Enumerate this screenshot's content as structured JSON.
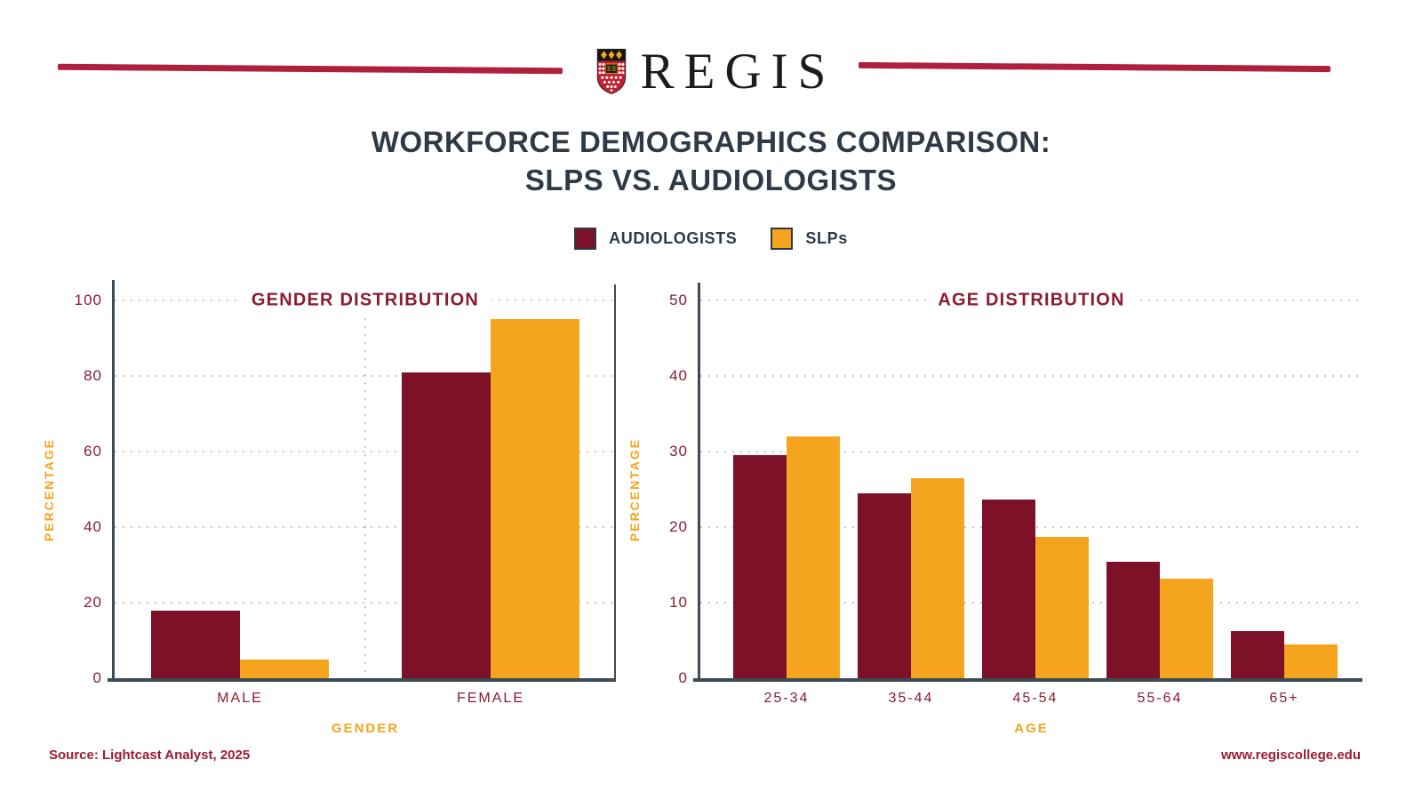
{
  "brand": {
    "wordmark": "REGIS"
  },
  "title": {
    "line1": "WORKFORCE DEMOGRAPHICS COMPARISON:",
    "line2": "SLPS VS. AUDIOLOGISTS"
  },
  "legend": [
    {
      "label": "AUDIOLOGISTS",
      "color": "#7D1128"
    },
    {
      "label": "SLPs",
      "color": "#F5A51D"
    }
  ],
  "colors": {
    "audiologists_bar": "#7D1128",
    "slps_bar": "#F5A51D",
    "maroon_text": "#8A1B30",
    "dark_text": "#2F3A46",
    "orange_text": "#F5A51D",
    "axis": "#3E4A55",
    "grid_dots": "#C9C9C9",
    "header_rule": "#B01F3B"
  },
  "chart_data": [
    {
      "type": "bar",
      "title": "GENDER DISTRIBUTION",
      "xlabel": "GENDER",
      "ylabel": "PERCENTAGE",
      "categories": [
        "MALE",
        "FEMALE"
      ],
      "series": [
        {
          "name": "AUDIOLOGISTS",
          "values": [
            18,
            81
          ]
        },
        {
          "name": "SLPs",
          "values": [
            5,
            95
          ]
        }
      ],
      "ylim": [
        0,
        100
      ],
      "yticks": [
        0,
        20,
        40,
        60,
        80,
        100
      ],
      "grid": "horizontal-dotted",
      "legend_position": "shared-top-center"
    },
    {
      "type": "bar",
      "title": "AGE DISTRIBUTION",
      "xlabel": "AGE",
      "ylabel": "PERCENTAGE",
      "categories": [
        "25-34",
        "35-44",
        "45-54",
        "55-64",
        "65+"
      ],
      "series": [
        {
          "name": "AUDIOLOGISTS",
          "values": [
            29.5,
            24.5,
            23.7,
            15.4,
            6.2
          ]
        },
        {
          "name": "SLPs",
          "values": [
            32,
            26.5,
            18.7,
            13.2,
            4.5
          ]
        }
      ],
      "ylim": [
        0,
        50
      ],
      "yticks": [
        0,
        10,
        20,
        30,
        40,
        50
      ],
      "grid": "horizontal-dotted",
      "legend_position": "shared-top-center"
    }
  ],
  "footer": {
    "source": "Source: Lightcast Analyst, 2025",
    "website": "www.regiscollege.edu"
  }
}
